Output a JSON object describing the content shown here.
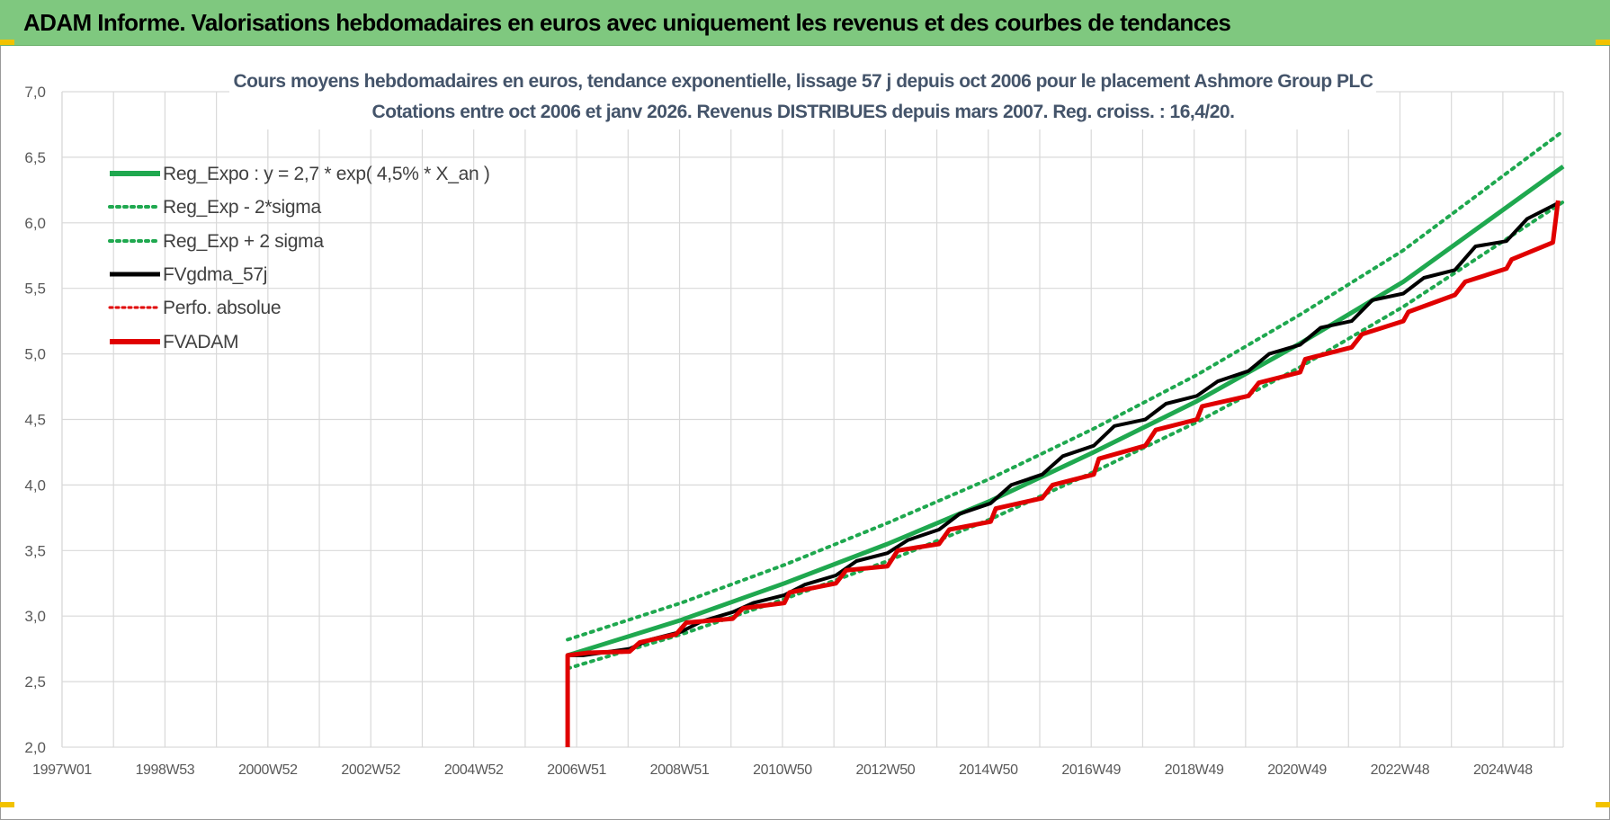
{
  "header": {
    "title": "ADAM Informe. Valorisations hebdomadaires en euros avec uniquement les revenus et des courbes de tendances",
    "background": "#7fc87f"
  },
  "colors": {
    "reg_expo": "#1fa84f",
    "sigma": "#1fa84f",
    "fvgdma": "#000000",
    "perfo": "#e00000",
    "fvadam": "#e00000",
    "grid": "#d9d9d9"
  },
  "chart_data": {
    "type": "line",
    "title_lines": [
      "Cours moyens hebdomadaires en euros, tendance exponentielle, lissage 57 j depuis oct 2006 pour le placement Ashmore Group PLC",
      "Cotations entre oct 2006 et janv 2026. Revenus DISTRIBUES depuis mars 2007. Reg. croiss. : 16,4/20."
    ],
    "y_ticks": [
      "2,0",
      "2,5",
      "3,0",
      "3,5",
      "4,0",
      "4,5",
      "5,0",
      "5,5",
      "6,0",
      "6,5",
      "7,0"
    ],
    "ylim": [
      2.0,
      7.0
    ],
    "x_ticks": [
      "1997W01",
      "1998W53",
      "2000W52",
      "2002W52",
      "2004W52",
      "2006W51",
      "2008W51",
      "2010W50",
      "2012W50",
      "2014W50",
      "2016W49",
      "2018W49",
      "2020W49",
      "2022W48",
      "2024W48"
    ],
    "xlim": [
      1997.0,
      2026.1
    ],
    "grid": true,
    "legend_position": "top-left",
    "legend": [
      {
        "label": "Reg_Expo : y = 2,7 * exp( 4,5% *  X_an )",
        "style": "solid-thick",
        "color": "#1fa84f"
      },
      {
        "label": "Reg_Exp - 2*sigma",
        "style": "dotted",
        "color": "#1fa84f"
      },
      {
        "label": "Reg_Exp + 2 sigma",
        "style": "dotted",
        "color": "#1fa84f"
      },
      {
        "label": "FVgdma_57j",
        "style": "solid",
        "color": "#000000"
      },
      {
        "label": "Perfo. absolue",
        "style": "dotted",
        "color": "#e00000"
      },
      {
        "label": "FVADAM",
        "style": "solid-thick",
        "color": "#e00000"
      }
    ],
    "series": [
      {
        "name": "Reg_Expo : y = 2,7 * exp( 4,5% *  X_an )",
        "x": [
          2006.8,
          2009.0,
          2011.0,
          2013.0,
          2015.0,
          2017.0,
          2019.0,
          2021.0,
          2023.0,
          2026.1
        ],
        "y": [
          2.7,
          2.97,
          3.25,
          3.55,
          3.88,
          4.25,
          4.64,
          5.08,
          5.55,
          6.43
        ]
      },
      {
        "name": "Reg_Exp - 2*sigma",
        "x": [
          2006.8,
          2009.0,
          2011.0,
          2013.0,
          2015.0,
          2017.0,
          2019.0,
          2021.0,
          2023.0,
          2026.1
        ],
        "y": [
          2.6,
          2.86,
          3.13,
          3.42,
          3.74,
          4.1,
          4.48,
          4.9,
          5.36,
          6.16
        ]
      },
      {
        "name": "Reg_Exp + 2 sigma",
        "x": [
          2006.8,
          2009.0,
          2011.0,
          2013.0,
          2015.0,
          2017.0,
          2019.0,
          2021.0,
          2023.0,
          2026.1
        ],
        "y": [
          2.82,
          3.1,
          3.39,
          3.71,
          4.05,
          4.43,
          4.84,
          5.3,
          5.79,
          6.7
        ]
      },
      {
        "name": "FVgdma_57j",
        "x": [
          2006.8,
          2006.8,
          2007.1,
          2008.0,
          2008.4,
          2009.0,
          2009.4,
          2010.0,
          2010.4,
          2011.0,
          2011.4,
          2012.0,
          2012.4,
          2013.0,
          2013.4,
          2014.0,
          2014.4,
          2015.0,
          2015.4,
          2016.0,
          2016.4,
          2017.0,
          2017.4,
          2018.0,
          2018.4,
          2019.0,
          2019.4,
          2020.0,
          2020.4,
          2021.0,
          2021.4,
          2022.0,
          2022.4,
          2023.0,
          2023.4,
          2024.0,
          2024.4,
          2025.0,
          2025.4,
          2026.0
        ],
        "y": [
          2.0,
          2.7,
          2.7,
          2.75,
          2.82,
          2.88,
          2.96,
          3.03,
          3.1,
          3.16,
          3.24,
          3.31,
          3.42,
          3.48,
          3.58,
          3.66,
          3.78,
          3.86,
          4.0,
          4.08,
          4.22,
          4.3,
          4.45,
          4.5,
          4.62,
          4.68,
          4.79,
          4.87,
          5.0,
          5.07,
          5.2,
          5.25,
          5.41,
          5.46,
          5.58,
          5.64,
          5.82,
          5.86,
          6.03,
          6.15
        ]
      },
      {
        "name": "Perfo. absolue",
        "x": [
          2006.8,
          2026.0
        ],
        "y": [
          2.7,
          6.15
        ]
      },
      {
        "name": "FVADAM",
        "x": [
          2006.8,
          2006.8,
          2007.2,
          2008.0,
          2008.2,
          2008.9,
          2009.1,
          2010.0,
          2010.2,
          2011.0,
          2011.1,
          2012.0,
          2012.2,
          2013.0,
          2013.2,
          2014.0,
          2014.2,
          2015.0,
          2015.1,
          2016.0,
          2016.2,
          2017.0,
          2017.1,
          2018.0,
          2018.2,
          2019.0,
          2019.1,
          2020.0,
          2020.2,
          2021.0,
          2021.1,
          2022.0,
          2022.2,
          2023.0,
          2023.1,
          2024.0,
          2024.2,
          2025.0,
          2025.1,
          2025.9,
          2026.0
        ],
        "y": [
          2.0,
          2.7,
          2.72,
          2.73,
          2.8,
          2.86,
          2.95,
          2.98,
          3.06,
          3.1,
          3.18,
          3.25,
          3.35,
          3.38,
          3.5,
          3.55,
          3.66,
          3.72,
          3.82,
          3.9,
          4.0,
          4.08,
          4.2,
          4.3,
          4.42,
          4.5,
          4.6,
          4.68,
          4.78,
          4.86,
          4.96,
          5.05,
          5.15,
          5.25,
          5.32,
          5.45,
          5.55,
          5.65,
          5.72,
          5.85,
          6.17
        ]
      }
    ]
  }
}
